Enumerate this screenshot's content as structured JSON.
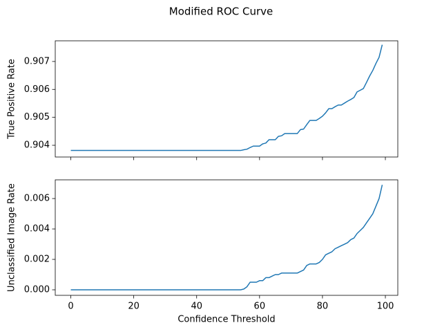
{
  "title": "Modified ROC Curve",
  "chart_data": [
    {
      "type": "line",
      "ylabel": "True Positive Rate",
      "x": [
        0,
        1,
        2,
        3,
        4,
        5,
        6,
        7,
        8,
        9,
        10,
        11,
        12,
        13,
        14,
        15,
        16,
        17,
        18,
        19,
        20,
        21,
        22,
        23,
        24,
        25,
        26,
        27,
        28,
        29,
        30,
        31,
        32,
        33,
        34,
        35,
        36,
        37,
        38,
        39,
        40,
        41,
        42,
        43,
        44,
        45,
        46,
        47,
        48,
        49,
        50,
        51,
        52,
        53,
        54,
        55,
        56,
        57,
        58,
        59,
        60,
        61,
        62,
        63,
        64,
        65,
        66,
        67,
        68,
        69,
        70,
        71,
        72,
        73,
        74,
        75,
        76,
        77,
        78,
        79,
        80,
        81,
        82,
        83,
        84,
        85,
        86,
        87,
        88,
        89,
        90,
        91,
        92,
        93,
        94,
        95,
        96,
        97,
        98,
        99
      ],
      "series": [
        {
          "color": "#1f77b4",
          "values": [
            0.903814,
            0.903814,
            0.903814,
            0.903814,
            0.903814,
            0.903814,
            0.903814,
            0.903814,
            0.903814,
            0.903814,
            0.903814,
            0.903814,
            0.903814,
            0.903814,
            0.903814,
            0.903814,
            0.903814,
            0.903814,
            0.903814,
            0.903814,
            0.903814,
            0.903814,
            0.903814,
            0.903814,
            0.903814,
            0.903814,
            0.903814,
            0.903814,
            0.903814,
            0.903814,
            0.903814,
            0.903814,
            0.903814,
            0.903814,
            0.903814,
            0.903814,
            0.903814,
            0.903814,
            0.903814,
            0.903814,
            0.903814,
            0.903814,
            0.903814,
            0.903814,
            0.903814,
            0.903814,
            0.903814,
            0.903814,
            0.903814,
            0.903814,
            0.903814,
            0.903814,
            0.903814,
            0.903814,
            0.903814,
            0.90384,
            0.90386,
            0.90392,
            0.90397,
            0.90397,
            0.90397,
            0.90405,
            0.90408,
            0.9042,
            0.9042,
            0.9042,
            0.90432,
            0.90434,
            0.90442,
            0.90442,
            0.90442,
            0.90442,
            0.90442,
            0.90456,
            0.90458,
            0.90474,
            0.90489,
            0.90489,
            0.90489,
            0.90496,
            0.90504,
            0.90516,
            0.90531,
            0.90531,
            0.90538,
            0.90544,
            0.90544,
            0.90551,
            0.90558,
            0.90564,
            0.90571,
            0.90591,
            0.90597,
            0.90603,
            0.90625,
            0.90648,
            0.90668,
            0.90693,
            0.90715,
            0.9076
          ]
        }
      ],
      "xlim": [
        -4.95,
        103.95
      ],
      "xticks": [
        0,
        20,
        40,
        60,
        80,
        100
      ],
      "show_xticklabels": false,
      "ylim": [
        0.90358,
        0.90774
      ],
      "yticks": [
        0.904,
        0.905,
        0.906,
        0.907
      ]
    },
    {
      "type": "line",
      "xlabel": "Confidence Threshold",
      "ylabel": "Unclassified Image Rate",
      "x": [
        0,
        1,
        2,
        3,
        4,
        5,
        6,
        7,
        8,
        9,
        10,
        11,
        12,
        13,
        14,
        15,
        16,
        17,
        18,
        19,
        20,
        21,
        22,
        23,
        24,
        25,
        26,
        27,
        28,
        29,
        30,
        31,
        32,
        33,
        34,
        35,
        36,
        37,
        38,
        39,
        40,
        41,
        42,
        43,
        44,
        45,
        46,
        47,
        48,
        49,
        50,
        51,
        52,
        53,
        54,
        55,
        56,
        57,
        58,
        59,
        60,
        61,
        62,
        63,
        64,
        65,
        66,
        67,
        68,
        69,
        70,
        71,
        72,
        73,
        74,
        75,
        76,
        77,
        78,
        79,
        80,
        81,
        82,
        83,
        84,
        85,
        86,
        87,
        88,
        89,
        90,
        91,
        92,
        93,
        94,
        95,
        96,
        97,
        98,
        99
      ],
      "series": [
        {
          "color": "#1f77b4",
          "values": [
            0,
            0,
            0,
            0,
            0,
            0,
            0,
            0,
            0,
            0,
            0,
            0,
            0,
            0,
            0,
            0,
            0,
            0,
            0,
            0,
            0,
            0,
            0,
            0,
            0,
            0,
            0,
            0,
            0,
            0,
            0,
            0,
            0,
            0,
            0,
            0,
            0,
            0,
            0,
            0,
            0,
            0,
            0,
            0,
            0,
            0,
            0,
            0,
            0,
            0,
            0,
            0,
            0,
            0,
            0,
            5e-05,
            0.0002,
            0.0005,
            0.0005,
            0.0005,
            0.0006,
            0.0006,
            0.0008,
            0.0008,
            0.0009,
            0.001,
            0.001,
            0.0011,
            0.0011,
            0.0011,
            0.0011,
            0.0011,
            0.0011,
            0.0012,
            0.0013,
            0.0016,
            0.0017,
            0.0017,
            0.0017,
            0.0018,
            0.002,
            0.0023,
            0.0024,
            0.0025,
            0.0027,
            0.0028,
            0.0029,
            0.003,
            0.0031,
            0.0033,
            0.0034,
            0.0037,
            0.0039,
            0.0041,
            0.0044,
            0.0047,
            0.005,
            0.0055,
            0.006,
            0.0069
          ]
        }
      ],
      "xlim": [
        -4.95,
        103.95
      ],
      "xticks": [
        0,
        20,
        40,
        60,
        80,
        100
      ],
      "show_xticklabels": true,
      "ylim": [
        -0.000364,
        0.00723
      ],
      "yticks": [
        {
          "value": 0,
          "label": "0.000"
        },
        0.002,
        0.004,
        0.006
      ]
    }
  ]
}
